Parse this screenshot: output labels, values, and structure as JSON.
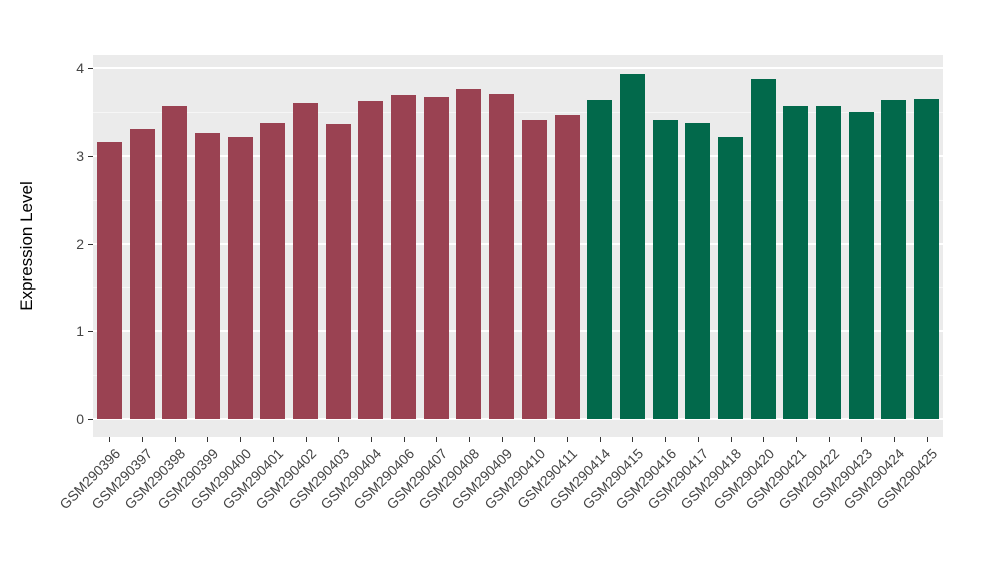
{
  "chart_data": {
    "type": "bar",
    "title": "",
    "xlabel": "",
    "ylabel": "Expression Level",
    "ylim": [
      0,
      4.15
    ],
    "yticks": [
      0,
      1,
      2,
      3,
      4
    ],
    "y_minor_ticks": [
      0.5,
      1.5,
      2.5,
      3.5
    ],
    "grid": "major-and-minor-horizontal",
    "legend": false,
    "plot_background": "#EBEBEB",
    "gridline_color": "#FFFFFF",
    "categories": [
      "GSM290396",
      "GSM290397",
      "GSM290398",
      "GSM290399",
      "GSM290400",
      "GSM290401",
      "GSM290402",
      "GSM290403",
      "GSM290404",
      "GSM290406",
      "GSM290407",
      "GSM290408",
      "GSM290409",
      "GSM290410",
      "GSM290411",
      "GSM290414",
      "GSM290415",
      "GSM290416",
      "GSM290417",
      "GSM290418",
      "GSM290420",
      "GSM290421",
      "GSM290422",
      "GSM290423",
      "GSM290424",
      "GSM290425"
    ],
    "values": [
      3.16,
      3.3,
      3.57,
      3.26,
      3.21,
      3.37,
      3.6,
      3.36,
      3.62,
      3.69,
      3.67,
      3.76,
      3.7,
      3.41,
      3.47,
      3.64,
      3.93,
      3.41,
      3.37,
      3.21,
      3.87,
      3.57,
      3.57,
      3.5,
      3.63,
      3.65
    ],
    "bar_groups": [
      "group1",
      "group1",
      "group1",
      "group1",
      "group1",
      "group1",
      "group1",
      "group1",
      "group1",
      "group1",
      "group1",
      "group1",
      "group1",
      "group1",
      "group1",
      "group2",
      "group2",
      "group2",
      "group2",
      "group2",
      "group2",
      "group2",
      "group2",
      "group2",
      "group2",
      "group2"
    ],
    "group_colors": {
      "group1": "#9A4252",
      "group2": "#02694B"
    }
  },
  "colors": {
    "axis_text": "#444444",
    "axis_title": "#000000",
    "tick_mark": "#333333",
    "canvas_background": "#FFFFFF"
  }
}
